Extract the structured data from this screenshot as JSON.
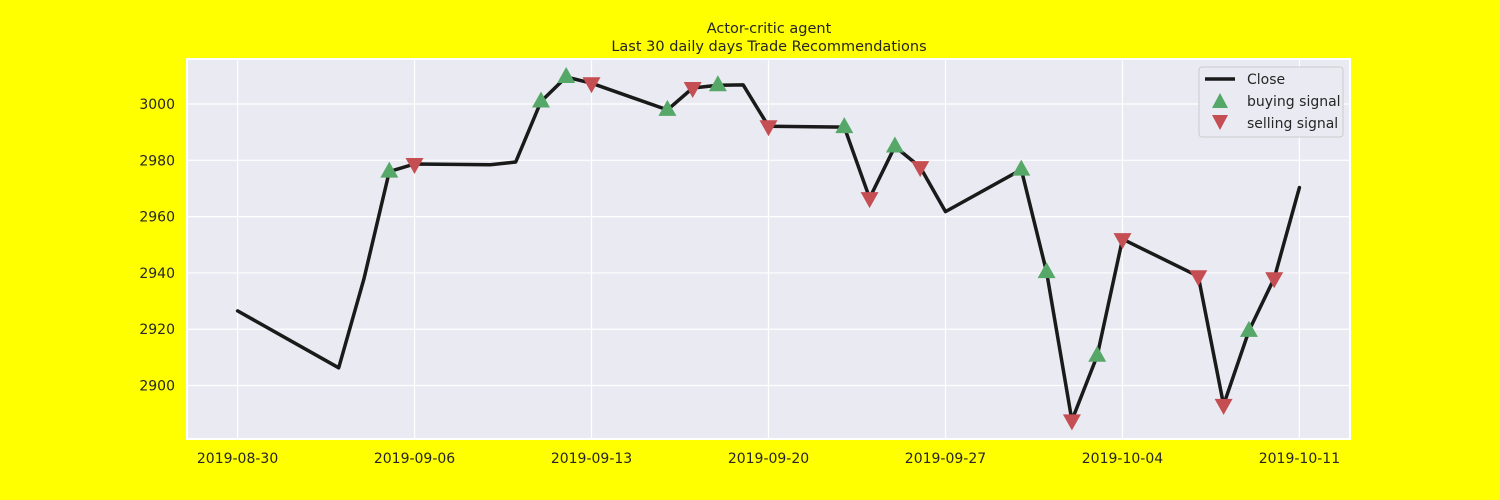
{
  "chart_data": {
    "type": "line",
    "title": "Actor-critic agent",
    "subtitle": "Last 30 daily days Trade Recommendations",
    "xlabel": "",
    "ylabel": "",
    "grid": true,
    "legend_position": "top-right",
    "ylim": [
      2881,
      3016
    ],
    "xlim": [
      "2019-08-28",
      "2019-10-13"
    ],
    "x_ticks": [
      "2019-08-30",
      "2019-09-06",
      "2019-09-13",
      "2019-09-20",
      "2019-09-27",
      "2019-10-04",
      "2019-10-11"
    ],
    "y_ticks": [
      2900,
      2920,
      2940,
      2960,
      2980,
      3000
    ],
    "series": [
      {
        "name": "Close",
        "color": "#1a1a1a",
        "points": [
          {
            "x": "2019-08-30",
            "y": 2926.5
          },
          {
            "x": "2019-09-03",
            "y": 2906.3
          },
          {
            "x": "2019-09-04",
            "y": 2938.0
          },
          {
            "x": "2019-09-05",
            "y": 2976.0
          },
          {
            "x": "2019-09-06",
            "y": 2978.7
          },
          {
            "x": "2019-09-09",
            "y": 2978.4
          },
          {
            "x": "2019-09-10",
            "y": 2979.4
          },
          {
            "x": "2019-09-11",
            "y": 3000.9
          },
          {
            "x": "2019-09-12",
            "y": 3009.6
          },
          {
            "x": "2019-09-13",
            "y": 3007.4
          },
          {
            "x": "2019-09-16",
            "y": 2997.9
          },
          {
            "x": "2019-09-17",
            "y": 3005.7
          },
          {
            "x": "2019-09-18",
            "y": 3006.7
          },
          {
            "x": "2019-09-19",
            "y": 3006.8
          },
          {
            "x": "2019-09-20",
            "y": 2992.1
          },
          {
            "x": "2019-09-23",
            "y": 2991.8
          },
          {
            "x": "2019-09-24",
            "y": 2966.6
          },
          {
            "x": "2019-09-25",
            "y": 2984.9
          },
          {
            "x": "2019-09-26",
            "y": 2977.6
          },
          {
            "x": "2019-09-27",
            "y": 2961.8
          },
          {
            "x": "2019-09-30",
            "y": 2976.7
          },
          {
            "x": "2019-10-01",
            "y": 2940.3
          },
          {
            "x": "2019-10-02",
            "y": 2887.6
          },
          {
            "x": "2019-10-03",
            "y": 2910.6
          },
          {
            "x": "2019-10-04",
            "y": 2952.0
          },
          {
            "x": "2019-10-07",
            "y": 2938.8
          },
          {
            "x": "2019-10-08",
            "y": 2893.1
          },
          {
            "x": "2019-10-09",
            "y": 2919.4
          },
          {
            "x": "2019-10-10",
            "y": 2938.1
          },
          {
            "x": "2019-10-11",
            "y": 2970.3
          }
        ]
      }
    ],
    "markers": [
      {
        "name": "buying signal",
        "shape": "triangle-up",
        "color": "#55a868",
        "x": [
          "2019-09-05",
          "2019-09-11",
          "2019-09-12",
          "2019-09-16",
          "2019-09-18",
          "2019-09-23",
          "2019-09-25",
          "2019-09-30",
          "2019-10-01",
          "2019-10-03",
          "2019-10-09"
        ]
      },
      {
        "name": "selling signal",
        "shape": "triangle-down",
        "color": "#c44e52",
        "x": [
          "2019-09-06",
          "2019-09-13",
          "2019-09-17",
          "2019-09-20",
          "2019-09-24",
          "2019-09-26",
          "2019-10-02",
          "2019-10-04",
          "2019-10-07",
          "2019-10-08",
          "2019-10-10"
        ]
      }
    ],
    "colors": {
      "figure_background": "#ffff00",
      "plot_background": "#eaeaf2",
      "grid": "#ffffff"
    }
  }
}
